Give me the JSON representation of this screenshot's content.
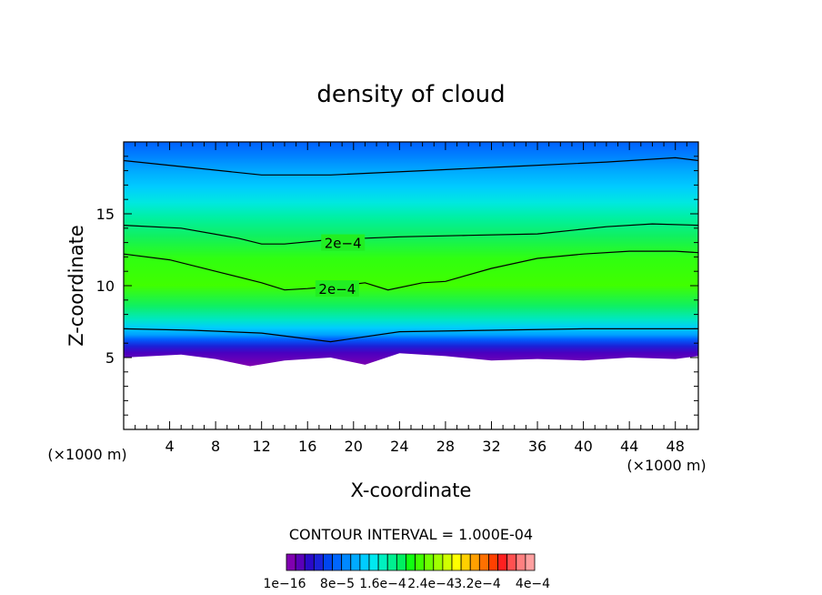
{
  "chart_data": {
    "type": "heatmap",
    "title": "density of cloud",
    "xlabel": "X-coordinate",
    "ylabel": "Z-coordinate",
    "x_unit_label": "(×1000 m)",
    "x_ticks": [
      4,
      8,
      12,
      16,
      20,
      24,
      28,
      32,
      36,
      40,
      44,
      48
    ],
    "y_ticks": [
      5,
      10,
      15
    ],
    "xlim": [
      0,
      50
    ],
    "ylim": [
      0,
      20
    ],
    "grid": false,
    "contour_interval_label": "CONTOUR INTERVAL = 1.000E-04",
    "contour_labels": [
      {
        "text": "2e−4",
        "x": 17.5,
        "z": 13.0
      },
      {
        "text": "2e−4",
        "x": 17.0,
        "z": 9.8
      }
    ],
    "contour_lines": [
      {
        "z": [
          [
            0,
            18.7
          ],
          [
            6,
            18.2
          ],
          [
            12,
            17.7
          ],
          [
            18,
            17.7
          ],
          [
            26,
            18.0
          ],
          [
            34,
            18.3
          ],
          [
            42,
            18.6
          ],
          [
            48,
            18.9
          ],
          [
            50,
            18.7
          ]
        ]
      },
      {
        "z": [
          [
            0,
            14.2
          ],
          [
            5,
            14.0
          ],
          [
            10,
            13.3
          ],
          [
            12,
            12.9
          ],
          [
            14,
            12.9
          ],
          [
            18,
            13.2
          ],
          [
            24,
            13.4
          ],
          [
            30,
            13.5
          ],
          [
            36,
            13.6
          ],
          [
            42,
            14.1
          ],
          [
            46,
            14.3
          ],
          [
            50,
            14.2
          ]
        ]
      },
      {
        "z": [
          [
            0,
            12.2
          ],
          [
            4,
            11.8
          ],
          [
            8,
            11.0
          ],
          [
            12,
            10.2
          ],
          [
            14,
            9.7
          ],
          [
            16,
            9.8
          ],
          [
            19,
            10.0
          ],
          [
            21,
            10.2
          ],
          [
            23,
            9.7
          ],
          [
            26,
            10.2
          ],
          [
            28,
            10.3
          ],
          [
            32,
            11.2
          ],
          [
            36,
            11.9
          ],
          [
            40,
            12.2
          ],
          [
            44,
            12.4
          ],
          [
            48,
            12.4
          ],
          [
            50,
            12.3
          ]
        ]
      },
      {
        "z": [
          [
            0,
            7.0
          ],
          [
            6,
            6.9
          ],
          [
            12,
            6.7
          ],
          [
            18,
            6.1
          ],
          [
            24,
            6.8
          ],
          [
            32,
            6.9
          ],
          [
            40,
            7.0
          ],
          [
            50,
            7.0
          ]
        ]
      }
    ],
    "field": {
      "cloud_base_z": [
        [
          0,
          5.0
        ],
        [
          5,
          5.2
        ],
        [
          8,
          4.9
        ],
        [
          11,
          4.4
        ],
        [
          14,
          4.8
        ],
        [
          18,
          5.0
        ],
        [
          21,
          4.5
        ],
        [
          24,
          5.3
        ],
        [
          28,
          5.1
        ],
        [
          32,
          4.8
        ],
        [
          36,
          4.9
        ],
        [
          40,
          4.8
        ],
        [
          44,
          5.0
        ],
        [
          48,
          4.9
        ],
        [
          50,
          5.1
        ]
      ],
      "cloud_top_z": 20.0
    },
    "colorbar": {
      "colors": [
        "#8000b0",
        "#5a00b8",
        "#2a0ac8",
        "#1a22d8",
        "#0046f0",
        "#0066ff",
        "#0088ff",
        "#00aaff",
        "#00ccff",
        "#00e8f0",
        "#00f0c0",
        "#00f090",
        "#00f060",
        "#10ff10",
        "#40ff00",
        "#70ff00",
        "#a0ff00",
        "#d0ff00",
        "#ffff00",
        "#ffd000",
        "#ffa000",
        "#ff7000",
        "#ff4000",
        "#ff2020",
        "#ff5050",
        "#ff8080",
        "#ffa0a0"
      ],
      "tick_labels": [
        "1e−16",
        "8e−5",
        "1.6e−4",
        "2.4e−4",
        "3.2e−4",
        "4e−4"
      ]
    }
  }
}
